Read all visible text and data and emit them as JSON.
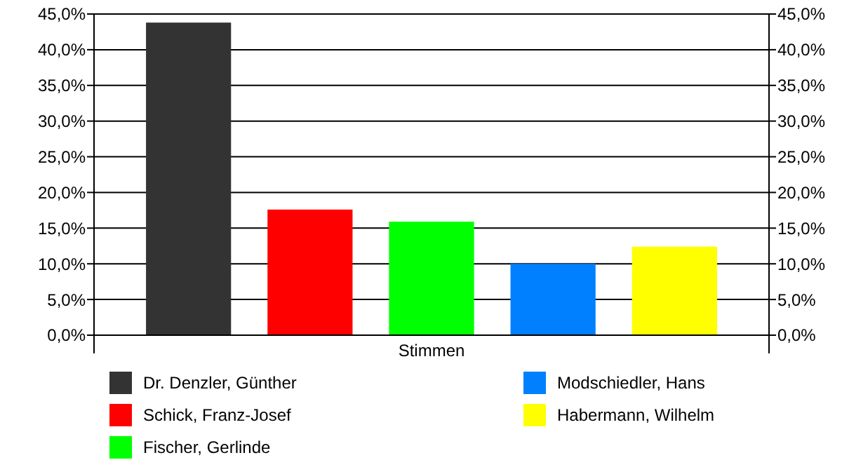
{
  "chart_data": {
    "type": "bar",
    "categories": [
      "Stimmen"
    ],
    "series": [
      {
        "name": "Dr. Denzler, Günther",
        "color": "#333333",
        "values": [
          43.8
        ]
      },
      {
        "name": "Schick, Franz-Josef",
        "color": "#ff0000",
        "values": [
          17.6
        ]
      },
      {
        "name": "Fischer, Gerlinde",
        "color": "#00ff00",
        "values": [
          15.9
        ]
      },
      {
        "name": "Modschiedler, Hans",
        "color": "#0080ff",
        "values": [
          10.0
        ]
      },
      {
        "name": "Habermann, Wilhelm",
        "color": "#ffff00",
        "values": [
          12.4
        ]
      }
    ],
    "ylim": [
      0,
      45
    ],
    "yticks": [
      {
        "value": 0,
        "label": "0,0%"
      },
      {
        "value": 5,
        "label": "5,0%"
      },
      {
        "value": 10,
        "label": "10,0%"
      },
      {
        "value": 15,
        "label": "15,0%"
      },
      {
        "value": 20,
        "label": "20,0%"
      },
      {
        "value": 25,
        "label": "25,0%"
      },
      {
        "value": 30,
        "label": "30,0%"
      },
      {
        "value": 35,
        "label": "35,0%"
      },
      {
        "value": 40,
        "label": "40,0%"
      },
      {
        "value": 45,
        "label": "45,0%"
      }
    ],
    "grid": "y",
    "legend": "bottom"
  }
}
